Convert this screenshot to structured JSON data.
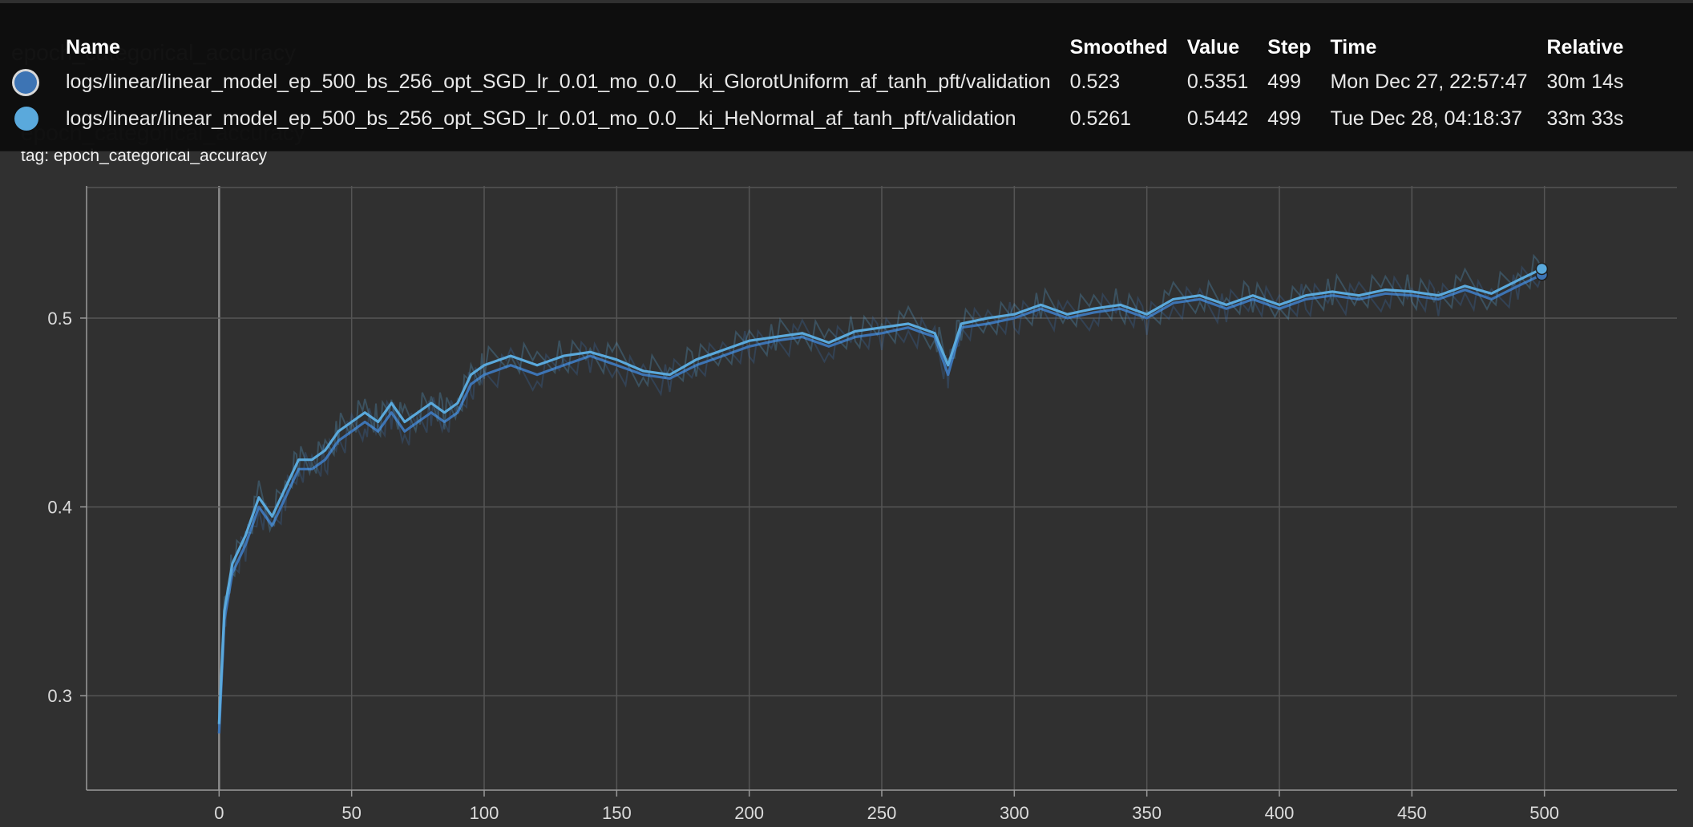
{
  "panel": {
    "title": "epoch_categorical_accuracy",
    "tag_line": "tag: epoch_categorical_accuracy"
  },
  "tooltip": {
    "headers": {
      "name": "Name",
      "smoothed": "Smoothed",
      "value": "Value",
      "step": "Step",
      "time": "Time",
      "relative": "Relative"
    },
    "rows": [
      {
        "name": "logs/linear/linear_model_ep_500_bs_256_opt_SGD_lr_0.01_mo_0.0__ki_GlorotUniform_af_tanh_pft/validation",
        "smoothed": "0.523",
        "value": "0.5351",
        "step": "499",
        "time": "Mon Dec 27, 22:57:47",
        "relative": "30m 14s",
        "color": "#3d74b4"
      },
      {
        "name": "logs/linear/linear_model_ep_500_bs_256_opt_SGD_lr_0.01_mo_0.0__ki_HeNormal_af_tanh_pft/validation",
        "smoothed": "0.5261",
        "value": "0.5442",
        "step": "499",
        "time": "Tue Dec 28, 04:18:37",
        "relative": "33m 33s",
        "color": "#5aa9dc"
      }
    ]
  },
  "chart_data": {
    "type": "line",
    "xlim": [
      -50,
      550
    ],
    "ylim": [
      0.25,
      0.57
    ],
    "x_ticks": [
      "0",
      "50",
      "100",
      "150",
      "200",
      "250",
      "300",
      "350",
      "400",
      "450",
      "500"
    ],
    "y_ticks": [
      "0.3",
      "0.4",
      "0.5"
    ],
    "grid": true,
    "series": [
      {
        "name": "logs/linear/linear_model_ep_500_bs_256_opt_SGD_lr_0.01_mo_0.0__ki_GlorotUniform_af_tanh_pft/validation",
        "color": "#3d74b4",
        "x": [
          0,
          2,
          5,
          10,
          15,
          20,
          25,
          30,
          35,
          40,
          45,
          50,
          55,
          60,
          65,
          70,
          75,
          80,
          85,
          90,
          95,
          100,
          110,
          120,
          130,
          140,
          150,
          160,
          170,
          180,
          190,
          200,
          210,
          220,
          230,
          240,
          250,
          260,
          270,
          275,
          280,
          290,
          300,
          310,
          320,
          330,
          340,
          350,
          360,
          370,
          380,
          390,
          400,
          410,
          420,
          430,
          440,
          450,
          460,
          470,
          480,
          490,
          499
        ],
        "y": [
          0.28,
          0.34,
          0.365,
          0.38,
          0.4,
          0.39,
          0.405,
          0.42,
          0.42,
          0.425,
          0.435,
          0.44,
          0.445,
          0.44,
          0.45,
          0.44,
          0.445,
          0.45,
          0.445,
          0.45,
          0.465,
          0.47,
          0.475,
          0.47,
          0.475,
          0.48,
          0.475,
          0.47,
          0.468,
          0.475,
          0.48,
          0.485,
          0.488,
          0.49,
          0.485,
          0.49,
          0.492,
          0.495,
          0.49,
          0.47,
          0.495,
          0.497,
          0.5,
          0.505,
          0.5,
          0.503,
          0.505,
          0.5,
          0.508,
          0.51,
          0.505,
          0.51,
          0.505,
          0.51,
          0.512,
          0.51,
          0.513,
          0.512,
          0.51,
          0.515,
          0.51,
          0.517,
          0.523
        ]
      },
      {
        "name": "logs/linear/linear_model_ep_500_bs_256_opt_SGD_lr_0.01_mo_0.0__ki_HeNormal_af_tanh_pft/validation",
        "color": "#5aa9dc",
        "x": [
          0,
          2,
          5,
          10,
          15,
          20,
          25,
          30,
          35,
          40,
          45,
          50,
          55,
          60,
          65,
          70,
          75,
          80,
          85,
          90,
          95,
          100,
          110,
          120,
          130,
          140,
          150,
          160,
          170,
          180,
          190,
          200,
          210,
          220,
          230,
          240,
          250,
          260,
          270,
          275,
          280,
          290,
          300,
          310,
          320,
          330,
          340,
          350,
          360,
          370,
          380,
          390,
          400,
          410,
          420,
          430,
          440,
          450,
          460,
          470,
          480,
          490,
          499
        ],
        "y": [
          0.285,
          0.345,
          0.37,
          0.385,
          0.405,
          0.395,
          0.41,
          0.425,
          0.425,
          0.43,
          0.44,
          0.445,
          0.45,
          0.445,
          0.455,
          0.445,
          0.45,
          0.455,
          0.45,
          0.455,
          0.47,
          0.475,
          0.48,
          0.475,
          0.48,
          0.482,
          0.478,
          0.472,
          0.47,
          0.478,
          0.483,
          0.488,
          0.49,
          0.492,
          0.487,
          0.493,
          0.495,
          0.497,
          0.492,
          0.475,
          0.497,
          0.5,
          0.502,
          0.507,
          0.502,
          0.505,
          0.507,
          0.502,
          0.51,
          0.512,
          0.507,
          0.512,
          0.507,
          0.512,
          0.514,
          0.512,
          0.515,
          0.514,
          0.512,
          0.517,
          0.513,
          0.52,
          0.5261
        ]
      }
    ]
  }
}
